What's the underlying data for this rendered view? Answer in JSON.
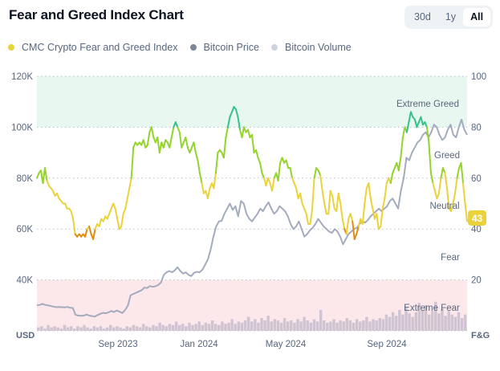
{
  "header": {
    "title": "Fear and Greed Index Chart",
    "ranges": [
      "30d",
      "1y",
      "All"
    ],
    "active_range": "All"
  },
  "legend": [
    {
      "label": "CMC Crypto Fear and Greed Index",
      "color": "#ead33a"
    },
    {
      "label": "Bitcoin Price",
      "color": "#7d8597"
    },
    {
      "label": "Bitcoin Volume",
      "color": "#cfd3dd"
    }
  ],
  "chart_data": {
    "type": "line",
    "title": "Fear and Greed Index Chart",
    "left_axis": {
      "label": "USD",
      "ticks": [
        "40K",
        "60K",
        "80K",
        "100K",
        "120K"
      ],
      "range": [
        20000,
        120000
      ]
    },
    "right_axis": {
      "label": "F&G",
      "ticks": [
        "20",
        "40",
        "60",
        "80",
        "100"
      ],
      "range": [
        0,
        100
      ]
    },
    "x_ticks": [
      "Sep 2023",
      "Jan 2024",
      "May 2024",
      "Sep 2024"
    ],
    "x_range": [
      "2023-06",
      "2024-12"
    ],
    "zones": [
      {
        "label": "Extreme Greed",
        "from": 80,
        "to": 100,
        "color": "#e8f7f0"
      },
      {
        "label": "Greed",
        "from": 60,
        "to": 80
      },
      {
        "label": "Neutral",
        "from": 40,
        "to": 60
      },
      {
        "label": "Fear",
        "from": 20,
        "to": 40
      },
      {
        "label": "Extreme Fear",
        "from": 0,
        "to": 20,
        "color": "#fce8ea"
      }
    ],
    "current_value": "43",
    "series": [
      {
        "name": "CMC Crypto Fear and Greed Index",
        "axis": "right",
        "values": [
          60,
          62,
          63,
          58,
          64,
          59,
          57,
          56,
          55,
          53,
          54,
          52,
          51,
          50,
          50,
          48,
          48,
          47,
          44,
          38,
          37,
          38,
          37,
          38,
          37,
          40,
          41,
          38,
          36,
          40,
          42,
          41,
          44,
          43,
          45,
          44,
          46,
          48,
          50,
          48,
          44,
          40,
          41,
          46,
          48,
          52,
          56,
          60,
          72,
          74,
          73,
          74,
          73,
          75,
          72,
          73,
          78,
          80,
          76,
          74,
          76,
          70,
          74,
          72,
          75,
          74,
          72,
          76,
          80,
          82,
          80,
          78,
          72,
          74,
          76,
          72,
          70,
          72,
          74,
          70,
          67,
          62,
          58,
          54,
          55,
          52,
          56,
          58,
          56,
          62,
          70,
          71,
          70,
          68,
          76,
          80,
          84,
          86,
          88,
          87,
          84,
          79,
          76,
          80,
          78,
          79,
          76,
          77,
          70,
          71,
          68,
          66,
          62,
          60,
          57,
          60,
          58,
          55,
          60,
          62,
          59,
          66,
          68,
          66,
          67,
          64,
          64,
          60,
          58,
          56,
          52,
          54,
          50,
          48,
          46,
          42,
          42,
          48,
          60,
          64,
          63,
          61,
          55,
          50,
          46,
          46,
          55,
          53,
          48,
          47,
          54,
          50,
          44,
          40,
          38,
          44,
          46,
          43,
          36,
          38,
          41,
          44,
          42,
          50,
          56,
          58,
          52,
          48,
          44,
          46,
          40,
          41,
          48,
          52,
          58,
          60,
          58,
          62,
          64,
          66,
          63,
          68,
          76,
          80,
          78,
          82,
          86,
          84,
          83,
          80,
          82,
          84,
          81,
          82,
          80,
          74,
          62,
          58,
          55,
          52,
          54,
          60,
          64,
          62,
          56,
          48,
          47,
          50,
          54,
          60,
          64,
          66,
          58,
          50,
          43
        ]
      },
      {
        "name": "Bitcoin Price",
        "axis": "left",
        "values": [
          30000,
          30200,
          30600,
          30200,
          30000,
          29800,
          29500,
          29300,
          29400,
          29300,
          29200,
          29400,
          29100,
          29000,
          26300,
          26000,
          25900,
          26000,
          26400,
          26000,
          25800,
          25600,
          26200,
          26700,
          27100,
          26900,
          27300,
          27800,
          27400,
          28000,
          27500,
          27000,
          28200,
          30000,
          34000,
          34500,
          35000,
          35500,
          36000,
          37000,
          36800,
          37600,
          37300,
          37500,
          38000,
          39000,
          42000,
          43000,
          43500,
          43000,
          43800,
          45000,
          43500,
          42500,
          43000,
          42000,
          41500,
          42800,
          43200,
          43000,
          44000,
          46000,
          48000,
          52000,
          57000,
          61000,
          63000,
          63200,
          66000,
          68000,
          70000,
          67500,
          69000,
          65000,
          71000,
          70000,
          66000,
          64000,
          63000,
          64500,
          66000,
          68000,
          67000,
          69000,
          70500,
          68000,
          66000,
          67000,
          69000,
          68000,
          67000,
          65000,
          62000,
          60000,
          61000,
          63000,
          60000,
          57000,
          58000,
          59500,
          60500,
          62000,
          64000,
          62500,
          61000,
          60000,
          59000,
          58500,
          60000,
          59000,
          57000,
          54000,
          56000,
          58000,
          59000,
          60000,
          60500,
          62000,
          63000,
          62500,
          63500,
          65000,
          66000,
          67000,
          68000,
          67000,
          68000,
          69000,
          71000,
          72000,
          70000,
          68000,
          75000,
          80000,
          88000,
          87000,
          90000,
          92000,
          94000,
          95000,
          97000,
          98000,
          96000,
          98000,
          101000,
          100000,
          97000,
          95000,
          96000,
          99000,
          101000,
          97000,
          96000,
          100000,
          103000,
          99000,
          97000
        ]
      },
      {
        "name": "Bitcoin Volume",
        "axis": "volume",
        "values": [
          3,
          4,
          2,
          5,
          3,
          4,
          3,
          2,
          5,
          3,
          4,
          2,
          4,
          3,
          5,
          3,
          2,
          4,
          3,
          4,
          2,
          3,
          5,
          3,
          4,
          3,
          2,
          4,
          3,
          5,
          4,
          3,
          6,
          4,
          3,
          5,
          4,
          7,
          5,
          4,
          6,
          5,
          8,
          5,
          6,
          4,
          7,
          5,
          6,
          8,
          5,
          7,
          6,
          9,
          6,
          5,
          8,
          6,
          7,
          10,
          6,
          8,
          7,
          9,
          12,
          8,
          10,
          7,
          11,
          9,
          13,
          8,
          10,
          9,
          7,
          11,
          8,
          9,
          7,
          10,
          8,
          12,
          9,
          7,
          10,
          8,
          18,
          9,
          7,
          8,
          10,
          7,
          9,
          8,
          11,
          9,
          7,
          10,
          8,
          9,
          12,
          8,
          10,
          9,
          11,
          10,
          14,
          12,
          16,
          13,
          18,
          14,
          20,
          15,
          12,
          16,
          24,
          18,
          22,
          14,
          17,
          25,
          15,
          19,
          13,
          17,
          14,
          12,
          16,
          11,
          14
        ]
      }
    ]
  }
}
